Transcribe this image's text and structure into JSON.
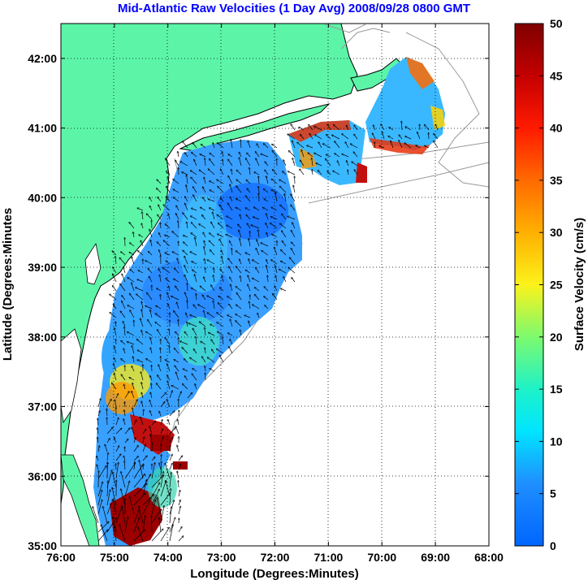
{
  "title": "Mid-Atlantic Raw Velocities (1 Day Avg) 2008/09/28 0800 GMT",
  "map": {
    "xlabel": "Longitude (Degrees:Minutes)",
    "ylabel": "Latitude (Degrees:Minutes",
    "x_ticks": [
      "76:00",
      "75:00",
      "74:00",
      "73:00",
      "72:00",
      "71:00",
      "70:00",
      "69:00",
      "68:00"
    ],
    "y_ticks": [
      "42:00",
      "41:00",
      "40:00",
      "39:00",
      "38:00",
      "37:00",
      "36:00",
      "35:00"
    ],
    "lon_range": [
      -76,
      -68
    ],
    "lat_range": [
      35,
      42.5
    ],
    "grid": "dotted",
    "colors": {
      "land": "#5cf5a8",
      "coast": "#000000",
      "bathymetry": "#999999",
      "arrows": "#000000"
    }
  },
  "colorbar": {
    "label": "Surface Velocity (cm/s)",
    "ticks": [
      "50",
      "45",
      "40",
      "35",
      "30",
      "25",
      "20",
      "15",
      "10",
      "5",
      "0"
    ],
    "range": [
      0,
      50
    ],
    "colormap": "jet"
  }
}
